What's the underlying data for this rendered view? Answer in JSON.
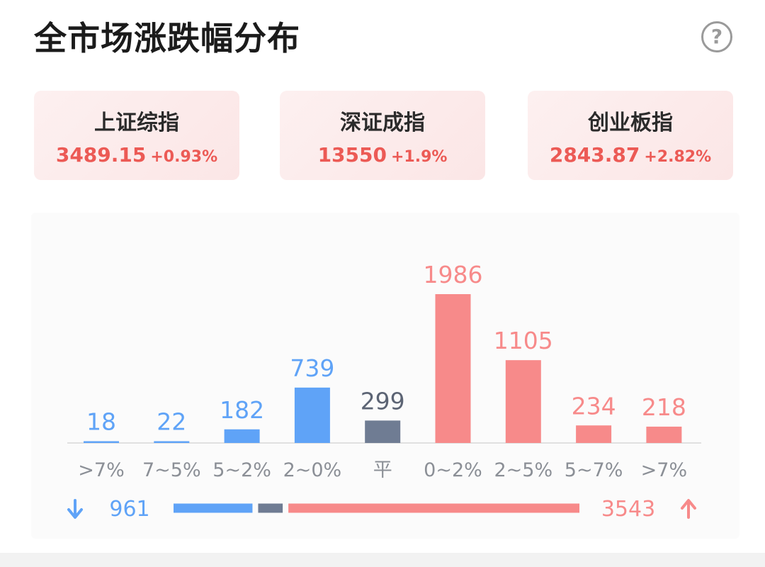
{
  "header": {
    "title": "全市场涨跌幅分布",
    "help_icon": "help-circle-icon",
    "help_glyph": "?"
  },
  "indices": [
    {
      "name": "上证综指",
      "value": "3489.15",
      "change": "+0.93%"
    },
    {
      "name": "深证成指",
      "value": "13550",
      "change": "+1.9%"
    },
    {
      "name": "创业板指",
      "value": "2843.87",
      "change": "+2.82%"
    }
  ],
  "colors": {
    "down": "#5fa3f7",
    "flat": "#6f7c93",
    "up": "#f78a8a",
    "up_text": "#ec5a55",
    "label": "#8b8f96"
  },
  "chart_data": {
    "type": "bar",
    "categories": [
      ">7%",
      "7~5%",
      "5~2%",
      "2~0%",
      "平",
      "0~2%",
      "2~5%",
      "5~7%",
      ">7%"
    ],
    "values": [
      18,
      22,
      182,
      739,
      299,
      1986,
      1105,
      234,
      218
    ],
    "groups": [
      "down",
      "down",
      "down",
      "down",
      "flat",
      "up",
      "up",
      "up",
      "up"
    ],
    "ylim": [
      0,
      1986
    ]
  },
  "summary": {
    "down_icon": "arrow-down-icon",
    "up_icon": "arrow-up-icon",
    "down_count": "961",
    "up_count": "3543",
    "flat_count": 299,
    "down_total": 961,
    "up_total": 3543
  }
}
